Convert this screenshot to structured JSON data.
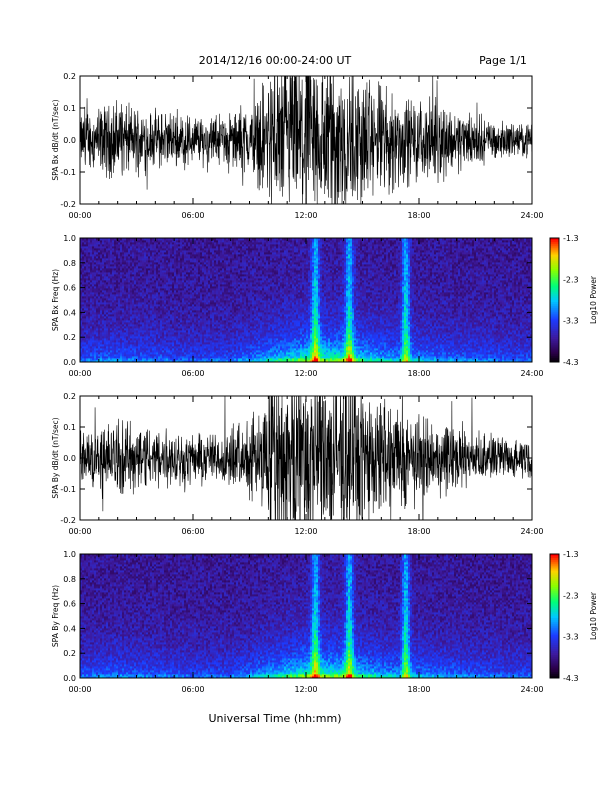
{
  "header": {
    "date_range": "2014/12/16  00:00-24:00 UT",
    "page": "Page 1/1"
  },
  "chart_data": [
    {
      "type": "line",
      "ylabel": "SPA Bx dB/dt (nT/sec)",
      "ylim": [
        -0.2,
        0.2
      ],
      "yticks": [
        -0.2,
        -0.1,
        0.0,
        0.1,
        0.2
      ],
      "ytick_labels": [
        "-0.2",
        "-0.1",
        "0.0",
        "0.1",
        "0.2"
      ],
      "xlim_hours": [
        0,
        24
      ],
      "xtick_labels": [
        "00:00",
        "06:00",
        "12:00",
        "18:00",
        "24:00"
      ],
      "envelope_x_hours": [
        0,
        1,
        2,
        3,
        4,
        5,
        6,
        7,
        8,
        9,
        9.5,
        10,
        10.5,
        11,
        12,
        13,
        14,
        15,
        16,
        17,
        18,
        19,
        20,
        21,
        22,
        23,
        24
      ],
      "envelope_amplitude": [
        0.08,
        0.1,
        0.12,
        0.1,
        0.09,
        0.08,
        0.08,
        0.07,
        0.08,
        0.1,
        0.14,
        0.22,
        0.24,
        0.26,
        0.28,
        0.26,
        0.26,
        0.2,
        0.18,
        0.14,
        0.12,
        0.12,
        0.1,
        0.08,
        0.06,
        0.05,
        0.05
      ],
      "color": "#000000"
    },
    {
      "type": "heatmap",
      "ylabel": "SPA Bx Freq (Hz)",
      "ylim": [
        0,
        1.0
      ],
      "yticks": [
        0.0,
        0.2,
        0.4,
        0.6,
        0.8,
        1.0
      ],
      "ytick_labels": [
        "0.0",
        "0.2",
        "0.4",
        "0.6",
        "0.8",
        "1.0"
      ],
      "xlim_hours": [
        0,
        24
      ],
      "xtick_labels": [
        "00:00",
        "06:00",
        "12:00",
        "18:00",
        "24:00"
      ],
      "colorbar_label": "Log10 Power",
      "colorbar_range": [
        -4.3,
        -1.3
      ],
      "colorbar_ticks": [
        -1.3,
        -2.3,
        -3.3,
        -4.3
      ],
      "colorbar_tick_labels": [
        "-1.3",
        "-2.3",
        "-3.3",
        "-4.3"
      ],
      "bright_bands_hours": [
        12.5,
        14.3,
        17.3
      ]
    },
    {
      "type": "line",
      "ylabel": "SPA By dB/dt (nT/sec)",
      "ylim": [
        -0.2,
        0.2
      ],
      "yticks": [
        -0.2,
        -0.1,
        0.0,
        0.1,
        0.2
      ],
      "ytick_labels": [
        "-0.2",
        "-0.1",
        "0.0",
        "0.1",
        "0.2"
      ],
      "xlim_hours": [
        0,
        24
      ],
      "xtick_labels": [
        "00:00",
        "06:00",
        "12:00",
        "18:00",
        "24:00"
      ],
      "envelope_x_hours": [
        0,
        1,
        2,
        3,
        4,
        5,
        6,
        7,
        8,
        9,
        9.5,
        10,
        10.5,
        11,
        12,
        13,
        14,
        15,
        16,
        17,
        18,
        19,
        20,
        21,
        22,
        23,
        24
      ],
      "envelope_amplitude": [
        0.08,
        0.1,
        0.12,
        0.11,
        0.1,
        0.09,
        0.08,
        0.08,
        0.09,
        0.12,
        0.16,
        0.22,
        0.26,
        0.3,
        0.3,
        0.3,
        0.28,
        0.22,
        0.2,
        0.16,
        0.14,
        0.12,
        0.1,
        0.08,
        0.07,
        0.06,
        0.06
      ],
      "color": "#000000"
    },
    {
      "type": "heatmap",
      "ylabel": "SPA By Freq (Hz)",
      "ylim": [
        0,
        1.0
      ],
      "yticks": [
        0.0,
        0.2,
        0.4,
        0.6,
        0.8,
        1.0
      ],
      "ytick_labels": [
        "0.0",
        "0.2",
        "0.4",
        "0.6",
        "0.8",
        "1.0"
      ],
      "xlim_hours": [
        0,
        24
      ],
      "xtick_labels": [
        "00:00",
        "06:00",
        "12:00",
        "18:00",
        "24:00"
      ],
      "colorbar_label": "Log10 Power",
      "colorbar_range": [
        -4.3,
        -1.3
      ],
      "colorbar_ticks": [
        -1.3,
        -2.3,
        -3.3,
        -4.3
      ],
      "colorbar_tick_labels": [
        "-1.3",
        "-2.3",
        "-3.3",
        "-4.3"
      ],
      "bright_bands_hours": [
        12.5,
        14.3,
        17.3
      ]
    }
  ],
  "xlabel": "Universal Time (hh:mm)"
}
